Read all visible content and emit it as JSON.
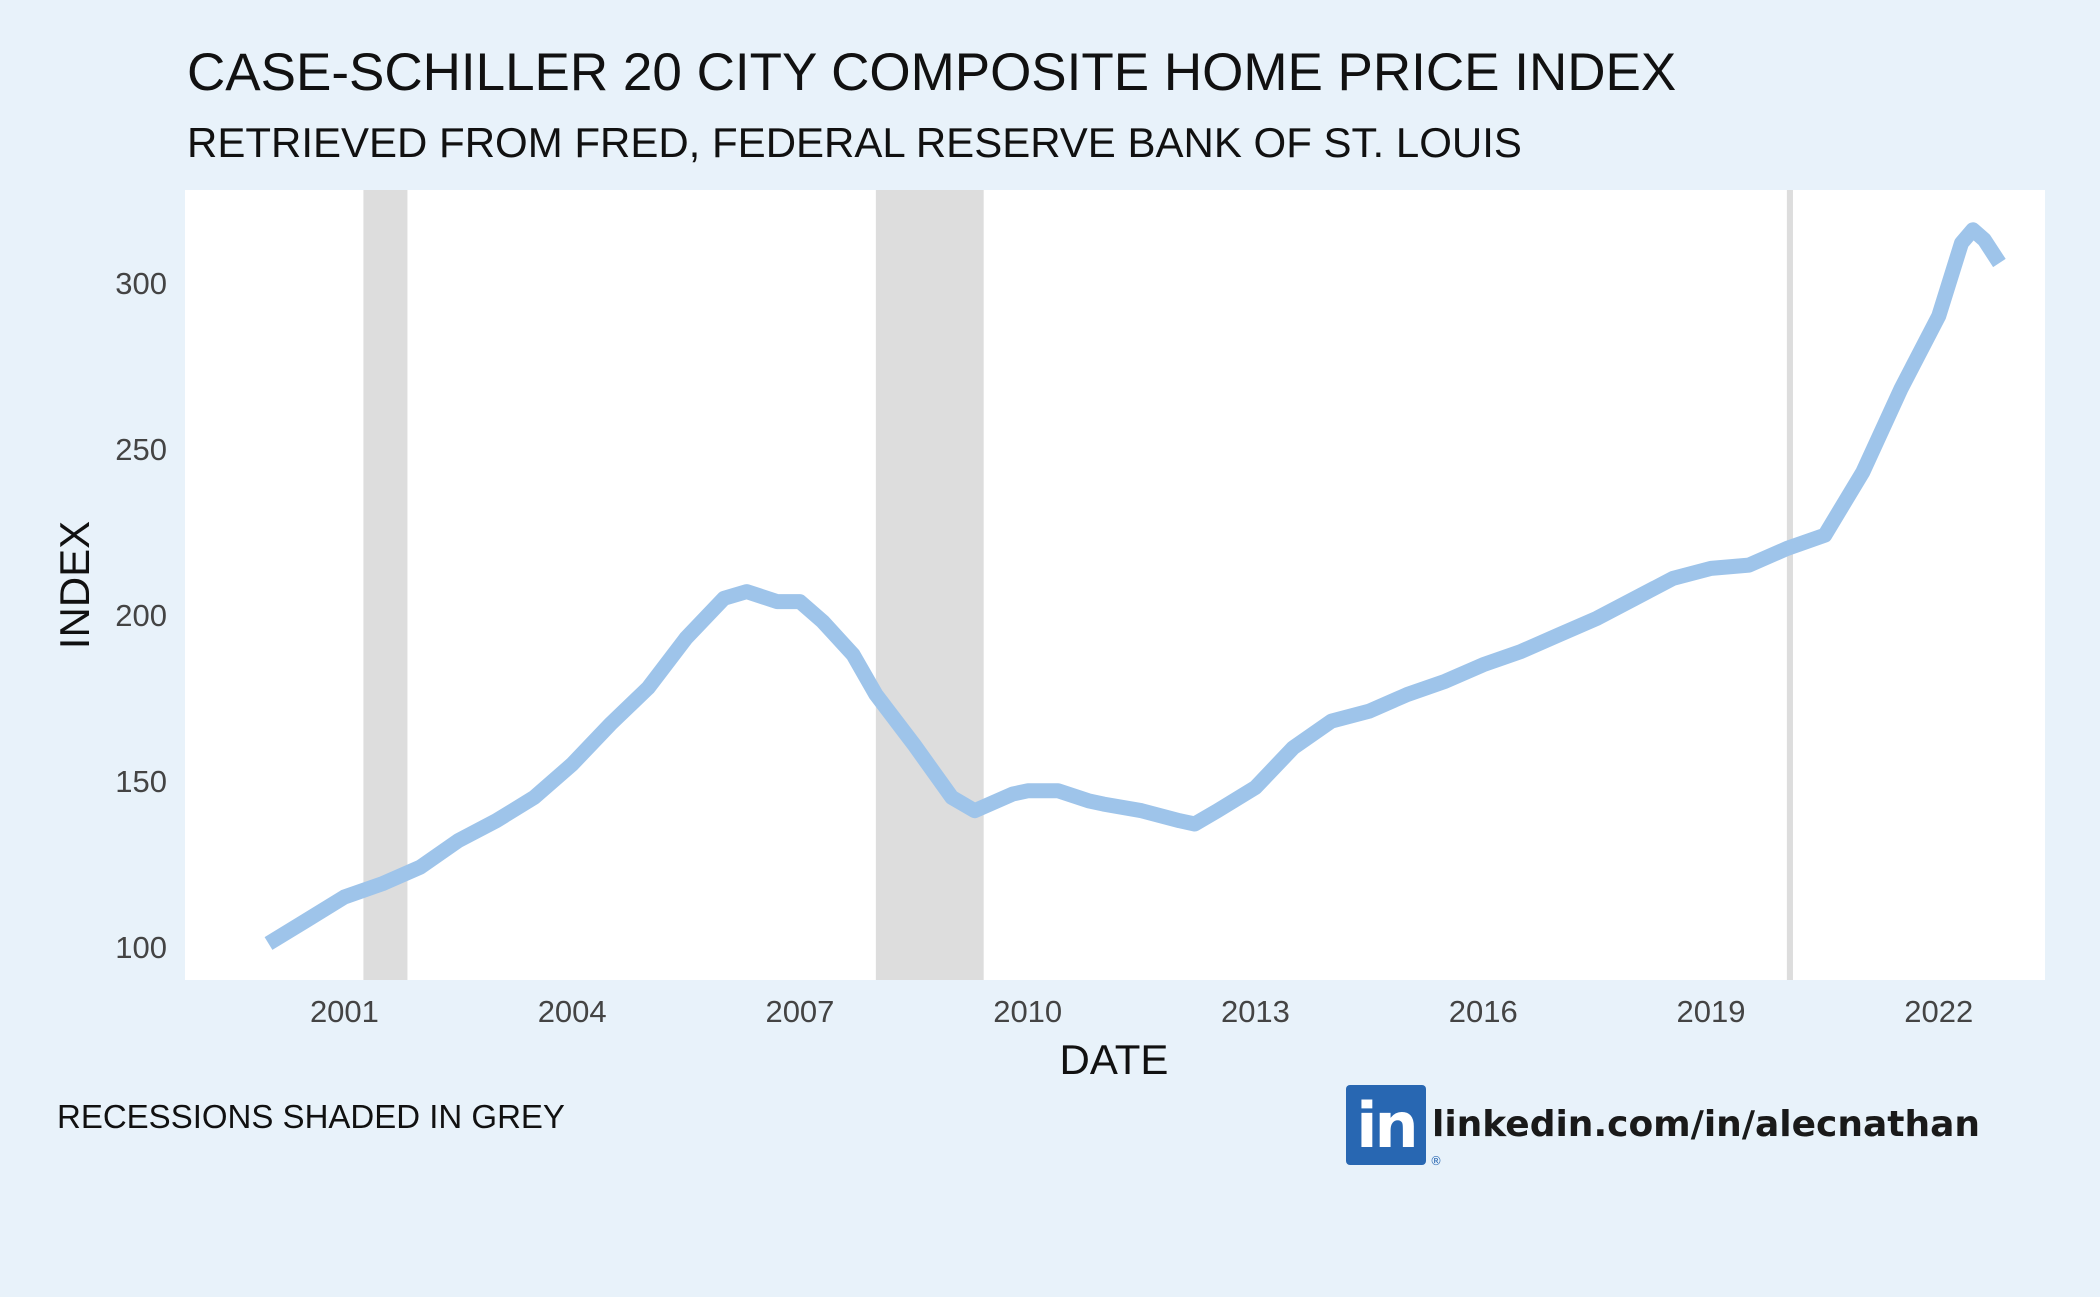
{
  "chart_data": {
    "type": "line",
    "title": "CASE-SCHILLER 20 CITY COMPOSITE HOME PRICE INDEX",
    "subtitle": "RETRIEVED FROM FRED, FEDERAL RESERVE BANK OF ST. LOUIS",
    "xlabel": "DATE",
    "ylabel": "INDEX",
    "caption": "RECESSIONS SHADED IN GREY",
    "xlim": [
      1998.9,
      2023.4
    ],
    "ylim": [
      90,
      328
    ],
    "x_ticks": [
      2001,
      2004,
      2007,
      2010,
      2013,
      2016,
      2019,
      2022
    ],
    "y_ticks": [
      100,
      150,
      200,
      250,
      300
    ],
    "grid": false,
    "legend": "none",
    "series": [
      {
        "name": "Case-Shiller 20-City Composite Home Price Index",
        "color": "#9ec4ea",
        "x": [
          2000.0,
          2000.5,
          2001.0,
          2001.5,
          2002.0,
          2002.5,
          2003.0,
          2003.5,
          2004.0,
          2004.5,
          2005.0,
          2005.5,
          2006.0,
          2006.3,
          2006.7,
          2007.0,
          2007.3,
          2007.7,
          2008.0,
          2008.5,
          2009.0,
          2009.3,
          2009.5,
          2009.8,
          2010.0,
          2010.4,
          2010.8,
          2011.0,
          2011.5,
          2012.0,
          2012.2,
          2012.5,
          2013.0,
          2013.5,
          2014.0,
          2014.5,
          2015.0,
          2015.5,
          2016.0,
          2016.5,
          2017.0,
          2017.5,
          2018.0,
          2018.5,
          2019.0,
          2019.5,
          2020.0,
          2020.5,
          2021.0,
          2021.5,
          2022.0,
          2022.3,
          2022.45,
          2022.6,
          2022.8
        ],
        "values": [
          101,
          108,
          115,
          119,
          124,
          132,
          138,
          145,
          155,
          167,
          178,
          193,
          205,
          207,
          204,
          204,
          198,
          188,
          176,
          161,
          145,
          141,
          143,
          146,
          147,
          147,
          144,
          143,
          141,
          138,
          137,
          141,
          148,
          160,
          168,
          171,
          176,
          180,
          185,
          189,
          194,
          199,
          205,
          211,
          214,
          215,
          220,
          224,
          243,
          268,
          290,
          312,
          316,
          313,
          306
        ]
      }
    ],
    "recessions": [
      {
        "start": 2001.25,
        "end": 2001.83
      },
      {
        "start": 2008.0,
        "end": 2009.42
      },
      {
        "start": 2020.0,
        "end": 2020.08
      }
    ],
    "plot_background": "#ffffff",
    "recession_color": "#dddddd",
    "page_background": "#e8f2fa"
  },
  "branding": {
    "logo_text": "in",
    "logo_reg_mark": "®",
    "url": "linkedin.com/in/alecnathan",
    "logo_color": "#2867b2"
  }
}
